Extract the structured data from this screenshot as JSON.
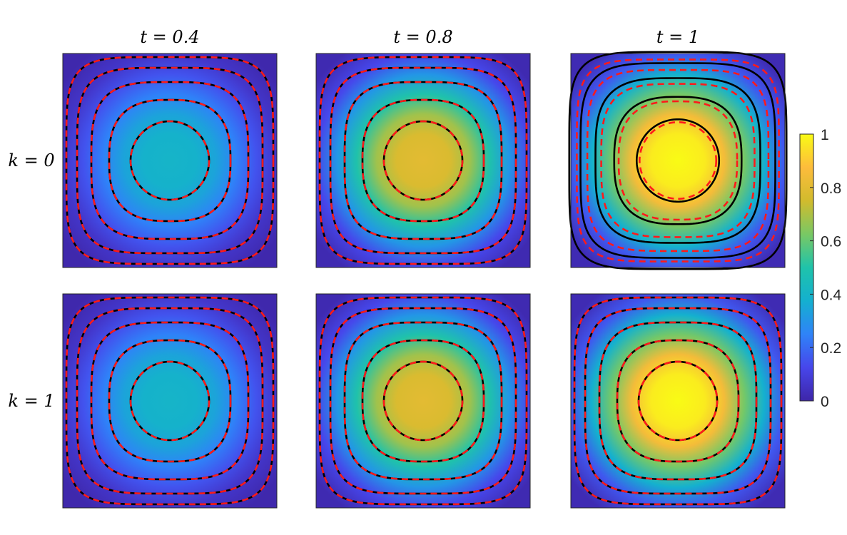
{
  "chart_data": {
    "type": "heatmap",
    "column_titles": [
      "t = 0.4",
      "t = 0.8",
      "t = 1"
    ],
    "row_labels": [
      "k = 0",
      "k = 1"
    ],
    "t_values": [
      0.4,
      0.8,
      1
    ],
    "k_values": [
      0,
      1
    ],
    "peak_values": [
      [
        0.4,
        0.8,
        1.0
      ],
      [
        0.4,
        0.8,
        1.0
      ]
    ],
    "contour_levels": [
      0.05,
      0.1,
      0.15,
      0.2,
      0.25
    ],
    "contour_levels_k0_t1": [
      0.1,
      0.2,
      0.3,
      0.4,
      0.5
    ],
    "colorbar": {
      "ticks": [
        0,
        0.2,
        0.4,
        0.6,
        0.8,
        1
      ],
      "tick_labels": [
        "0",
        "0.2",
        "0.4",
        "0.6",
        "0.8",
        "1"
      ],
      "range": [
        0,
        1
      ]
    },
    "line_styles": {
      "solid": "#000000",
      "dashed": "#ff1a1a"
    },
    "colormap_stops": [
      "#3e26a8",
      "#4746eb",
      "#2f83f8",
      "#14b0cf",
      "#1fc3aa",
      "#79c864",
      "#d1bb2d",
      "#fdbc3c",
      "#f9fb15"
    ]
  }
}
